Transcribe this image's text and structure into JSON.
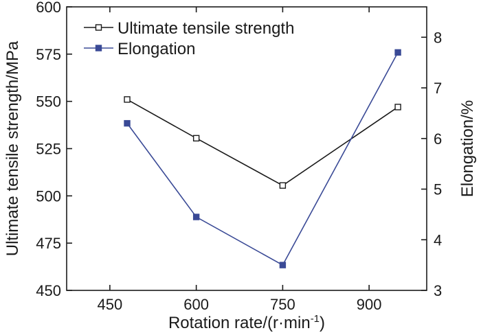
{
  "chart_data": {
    "type": "line",
    "x": [
      480,
      600,
      750,
      950
    ],
    "xlim": [
      375,
      1000
    ],
    "x_ticks": [
      450,
      600,
      750,
      900
    ],
    "xlabel": "Rotation rate/(r·min",
    "xlabel_sup": "-1",
    "xlabel_close": ")",
    "ylabel": "Ultimate tensile strength/MPa",
    "ylim": [
      450,
      600
    ],
    "y_ticks": [
      450,
      475,
      500,
      525,
      550,
      575,
      600
    ],
    "y2label": "Elongation/%",
    "y2lim": [
      3,
      8.6
    ],
    "y2_ticks": [
      3,
      4,
      5,
      6,
      7,
      8
    ],
    "series": [
      {
        "name": "Ultimate tensile strength",
        "axis": "left",
        "values": [
          551,
          530.5,
          505.5,
          547
        ],
        "color": "#1a1a1a",
        "marker": "hollow-square"
      },
      {
        "name": "Elongation",
        "axis": "right",
        "values": [
          6.3,
          4.45,
          3.5,
          7.7
        ],
        "color": "#3a4a96",
        "marker": "filled-square"
      }
    ],
    "legend_position": "top-left"
  }
}
